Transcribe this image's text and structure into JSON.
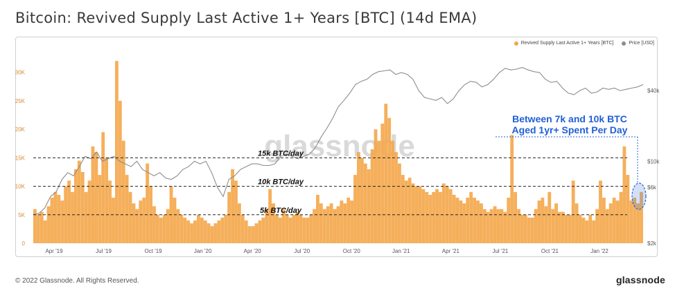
{
  "header": {
    "title": "Bitcoin: Revived Supply Last Active 1+ Years [BTC] (14d EMA)"
  },
  "footer": {
    "copyright": "© 2022 Glassnode. All Rights Reserved.",
    "brand": "glassnode"
  },
  "watermark": "glassnode",
  "colors": {
    "bars": "#f4a649",
    "price": "#8c8c8c",
    "annotation": "#1f5fd6"
  },
  "legend": [
    {
      "label": "Revived Supply Last Active 1+ Years [BTC]",
      "color": "#f4a649"
    },
    {
      "label": "Price [USD]",
      "color": "#8c8c8c"
    }
  ],
  "annotations": {
    "callout_line1": "Between 7k and 10k BTC",
    "callout_line2": "Aged 1yr+ Spent Per Day",
    "ref_lines": [
      {
        "label": "15k BTC/day",
        "value": 15000
      },
      {
        "label": "10k BTC/day",
        "value": 10000
      },
      {
        "label": "5k BTC/day",
        "value": 5000
      }
    ]
  },
  "chart_data": {
    "type": "bar",
    "x_ticks": [
      "Apr '19",
      "Jul '19",
      "Oct '19",
      "Jan '20",
      "Apr '20",
      "Jul '20",
      "Oct '20",
      "Jan '21",
      "Apr '21",
      "Jul '21",
      "Oct '21",
      "Jan '22"
    ],
    "y_left_ticks": [
      "0",
      "5K",
      "10K",
      "15K",
      "20K",
      "25K",
      "30K"
    ],
    "y_left_range": [
      0,
      33000
    ],
    "y_right_ticks": [
      "$2k",
      "$6k",
      "$10k",
      "$40k"
    ],
    "y_right_scale": "log",
    "grid": false,
    "legend_position": "top-right",
    "series": [
      {
        "name": "Revived Supply Last Active 1+ Years [BTC]",
        "kind": "bar",
        "x_range": [
          "2019-02-01",
          "2022-04-01"
        ],
        "values": [
          6000,
          5000,
          5500,
          4000,
          6500,
          8000,
          9000,
          8500,
          7500,
          10000,
          11000,
          9000,
          13000,
          14500,
          12500,
          9000,
          11000,
          17000,
          16000,
          12000,
          19500,
          15000,
          11000,
          8000,
          32000,
          25000,
          18000,
          12000,
          9000,
          7000,
          6000,
          7500,
          8000,
          14000,
          10000,
          6500,
          5000,
          4500,
          5000,
          6000,
          10000,
          8000,
          6000,
          5000,
          4500,
          4000,
          3500,
          4000,
          5000,
          4500,
          4000,
          3500,
          3000,
          3500,
          4000,
          4500,
          5000,
          9000,
          13000,
          11000,
          7000,
          5000,
          4000,
          3000,
          3000,
          3500,
          4000,
          4500,
          6000,
          9500,
          7000,
          5000,
          4500,
          6000,
          5000,
          4500,
          5000,
          5500,
          5000,
          4500,
          4500,
          5000,
          6000,
          8500,
          7000,
          6000,
          6500,
          7000,
          6000,
          6500,
          7500,
          7000,
          8000,
          7500,
          12000,
          16000,
          15000,
          14000,
          13000,
          16500,
          20000,
          18000,
          21000,
          24500,
          22000,
          18000,
          16000,
          14000,
          12000,
          11000,
          11500,
          10500,
          10000,
          10000,
          9500,
          9000,
          8500,
          9000,
          9500,
          9000,
          10500,
          10000,
          9500,
          8500,
          8000,
          7500,
          7000,
          8000,
          9000,
          8000,
          7500,
          7000,
          6000,
          5500,
          6000,
          6500,
          6000,
          6000,
          5500,
          8000,
          19000,
          9000,
          6000,
          5000,
          5000,
          4500,
          4500,
          6000,
          7500,
          8000,
          6500,
          9000,
          6000,
          7000,
          5500,
          5500,
          5000,
          5000,
          11000,
          7000,
          5000,
          4500,
          4000,
          5000,
          4000,
          6000,
          11000,
          8000,
          6000,
          7000,
          8000,
          7500,
          9000,
          17000,
          12000,
          7500,
          8000,
          7000,
          9000
        ]
      },
      {
        "name": "Price [USD]",
        "kind": "line",
        "values": [
          3500,
          3600,
          4000,
          5000,
          5500,
          7000,
          8000,
          7500,
          9000,
          11000,
          10500,
          12000,
          10000,
          10500,
          11000,
          10000,
          9500,
          9000,
          10000,
          8500,
          8000,
          7500,
          8000,
          7200,
          7000,
          7500,
          8500,
          9000,
          10000,
          9500,
          10000,
          8000,
          6000,
          5000,
          7000,
          7500,
          8500,
          9000,
          9500,
          9500,
          9200,
          9200,
          9500,
          11000,
          11500,
          11000,
          10500,
          11000,
          11500,
          13000,
          16000,
          19000,
          23000,
          29000,
          33000,
          38000,
          45000,
          48000,
          50000,
          55000,
          58000,
          59000,
          60000,
          55000,
          57000,
          55000,
          50000,
          40000,
          35000,
          34000,
          33000,
          35000,
          31000,
          34000,
          40000,
          45000,
          48000,
          47000,
          43000,
          45000,
          50000,
          57000,
          62000,
          60000,
          61000,
          63000,
          60000,
          58000,
          57000,
          50000,
          47000,
          48000,
          42000,
          38000,
          37000,
          40000,
          42000,
          38000,
          39000,
          42000,
          41000,
          42000,
          40000,
          41000,
          42000,
          43000,
          45000
        ]
      }
    ]
  }
}
